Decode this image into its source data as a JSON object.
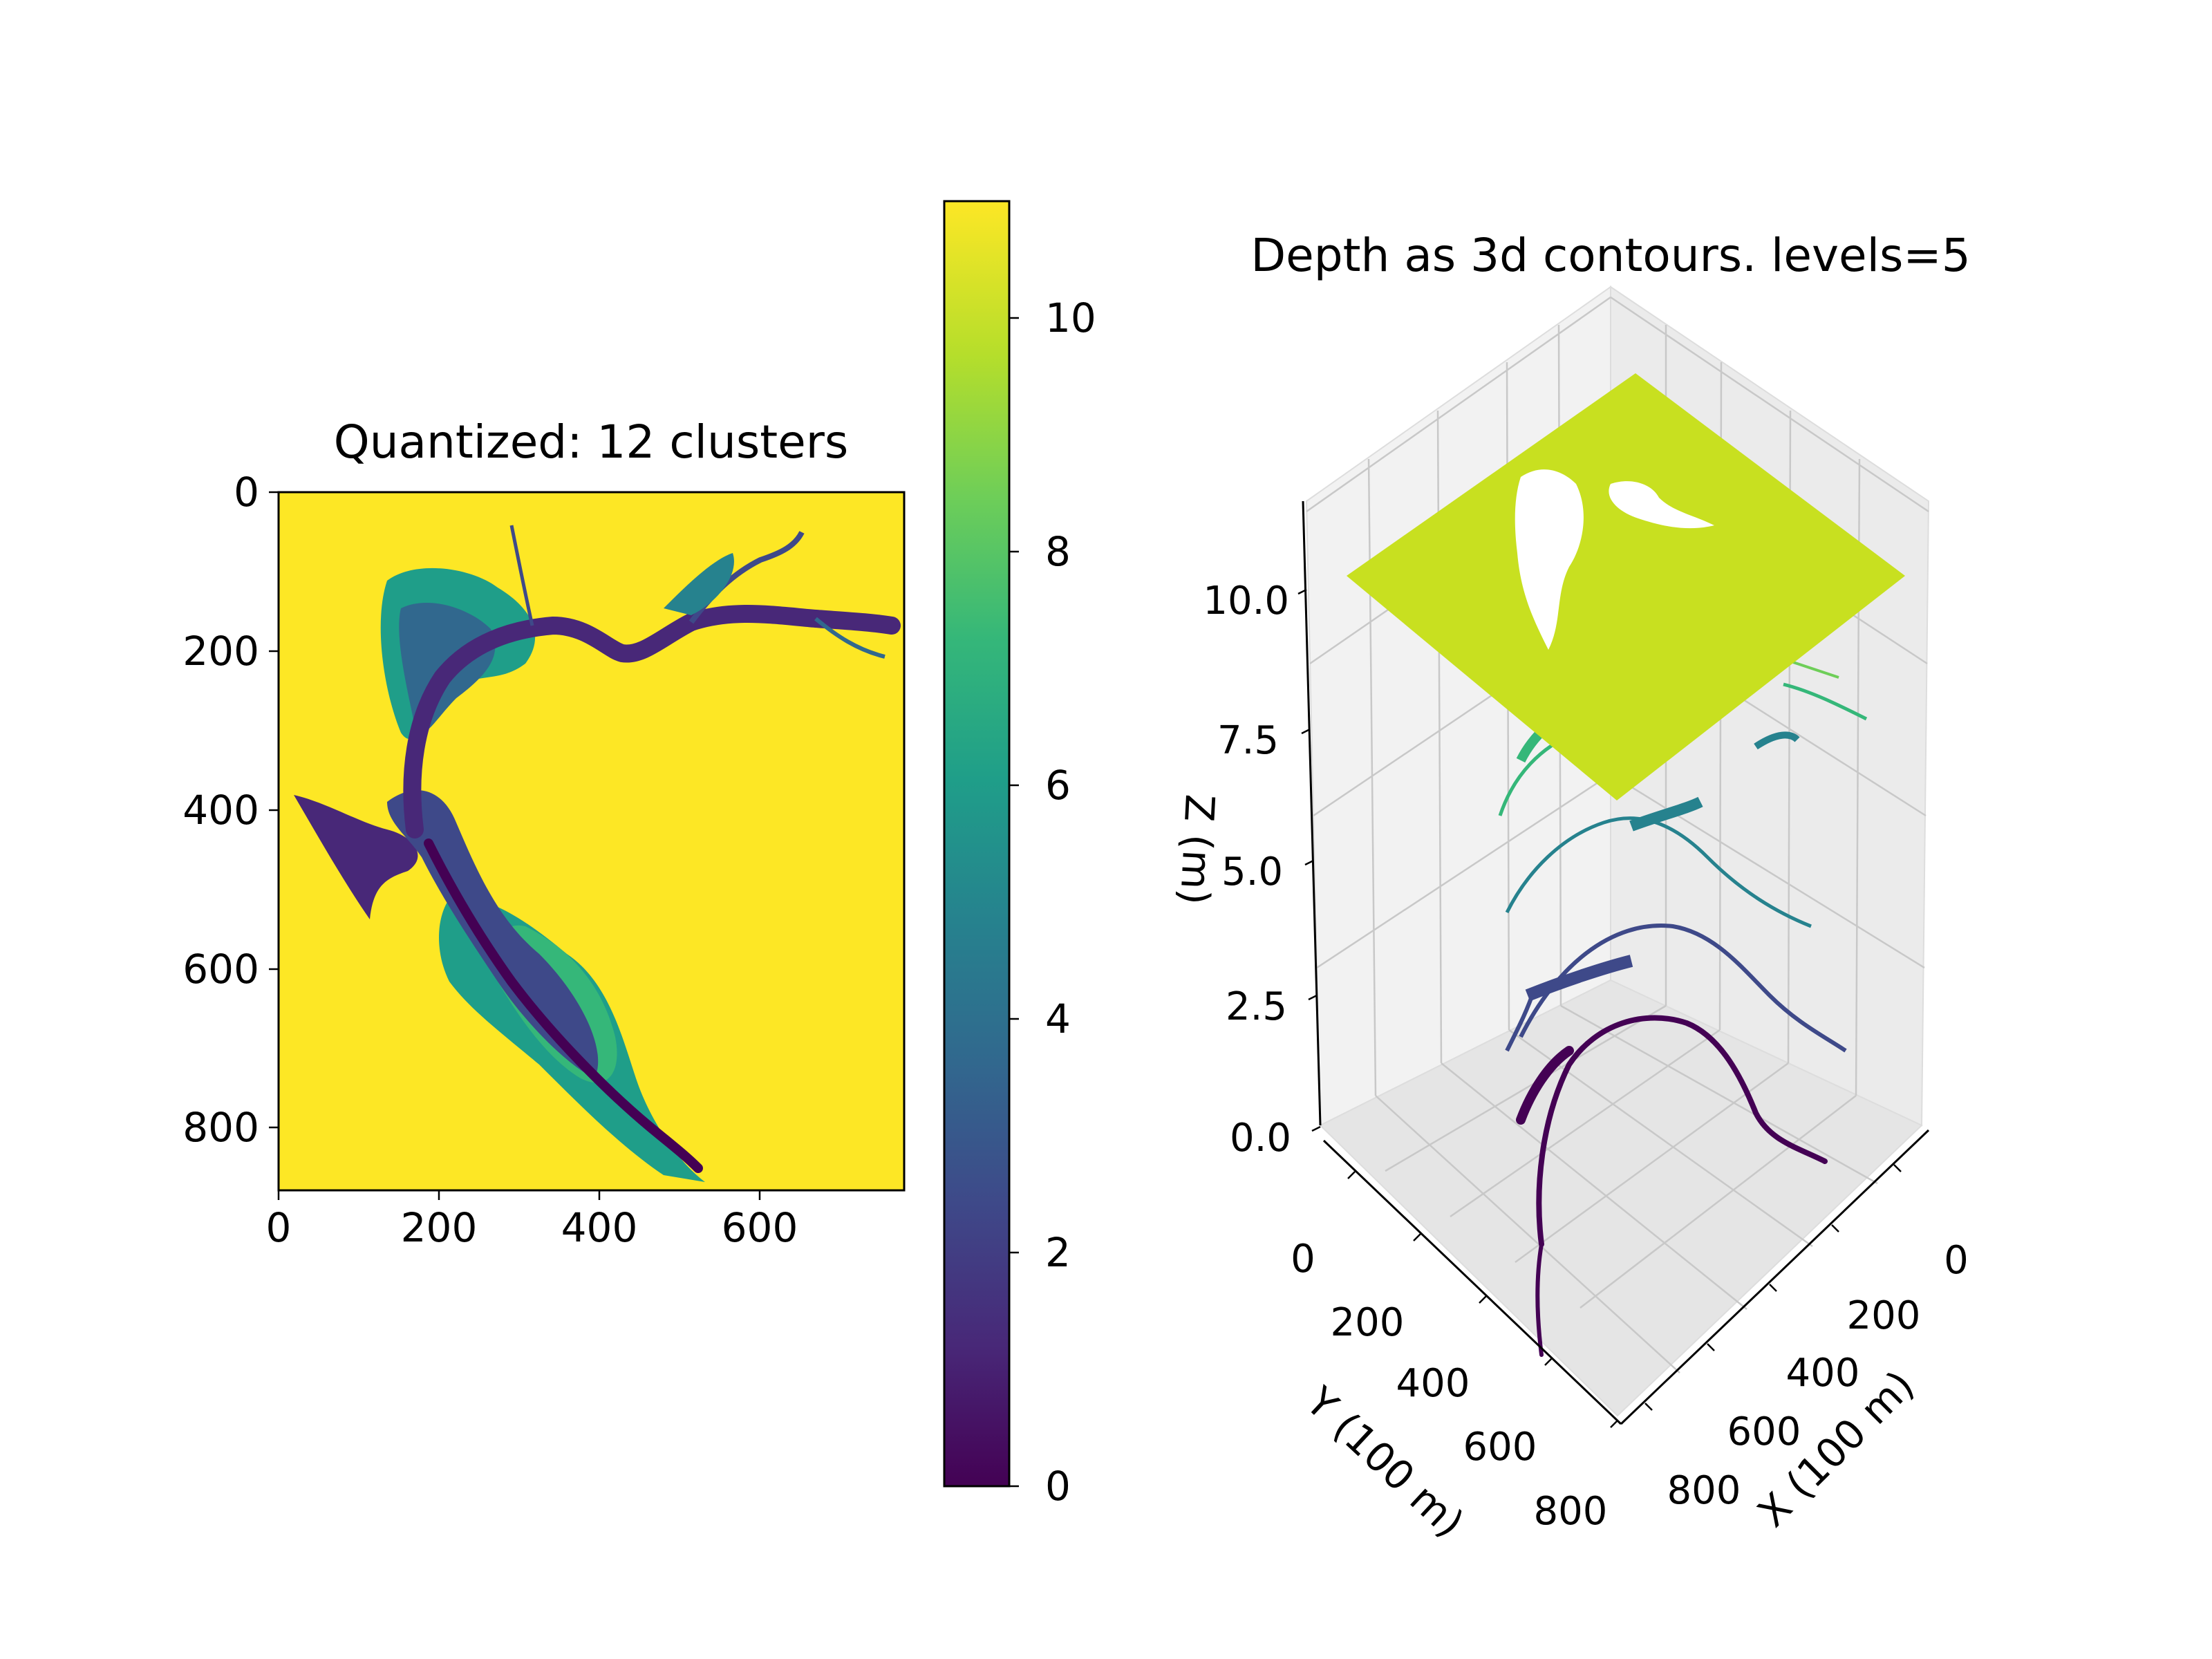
{
  "chart_data": [
    {
      "type": "heatmap",
      "title": "Quantized: 12 clusters",
      "xlabel": "",
      "ylabel": "",
      "x_ticks": [
        0,
        200,
        400,
        600
      ],
      "y_ticks": [
        0,
        200,
        400,
        600,
        800
      ],
      "xlim": [
        0,
        780
      ],
      "ylim": [
        880,
        0
      ],
      "clusters": 12,
      "colormap": "viridis",
      "colorbar": {
        "ticks": [
          0,
          2,
          4,
          6,
          8,
          10
        ],
        "range": [
          0,
          11
        ]
      }
    },
    {
      "type": "surface",
      "title": "Depth as 3d contours. levels=5",
      "xlabel": "X (100 m)",
      "ylabel": "Y (100 m)",
      "zlabel": "Z (m)",
      "x_ticks": [
        0,
        200,
        400,
        600,
        800
      ],
      "y_ticks": [
        0,
        200,
        400,
        600,
        800
      ],
      "z_ticks": [
        "0.0",
        "2.5",
        "5.0",
        "7.5",
        "10.0"
      ],
      "zlim": [
        0,
        11
      ],
      "levels": 5,
      "colormap": "viridis"
    }
  ],
  "colors": {
    "viridis": [
      "#440154",
      "#482878",
      "#3e4989",
      "#31688e",
      "#26828e",
      "#1f9e89",
      "#35b779",
      "#6ece58",
      "#b5de2b",
      "#fde725"
    ],
    "land": "#fde725",
    "top_plane": "#c8e020"
  }
}
